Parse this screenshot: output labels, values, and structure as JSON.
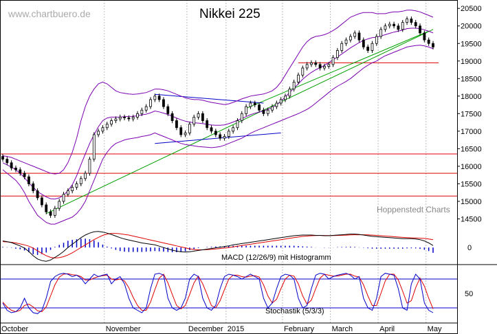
{
  "header": {
    "watermark": "www.chartbuero.de",
    "title": "Nikkei 225",
    "credit": "Hoppenstedt Charts"
  },
  "colors": {
    "candle": "#000000",
    "bollinger": "#7b00b0",
    "trend_green": "#00a000",
    "trend_blue": "#0000c8",
    "support_red": "#e00000",
    "macd_line": "#000000",
    "signal_line": "#e00000",
    "histogram": "#0000c8",
    "stoch_k": "#0000c8",
    "stoch_d": "#e00000"
  },
  "chart_data": [
    {
      "type": "candlestick",
      "name": "price-panel",
      "title": "Nikkei 225",
      "x_labels": [
        "October",
        "November",
        "December",
        "2015",
        "February",
        "March",
        "April",
        "May"
      ],
      "y_ticks": [
        14500,
        15000,
        15500,
        16000,
        16500,
        17000,
        17500,
        18000,
        18500,
        19000,
        19500,
        20000,
        20500
      ],
      "ylim": [
        14000,
        20700
      ],
      "closes": [
        16200,
        16100,
        15950,
        15900,
        15800,
        15700,
        15500,
        15300,
        15100,
        14900,
        14700,
        14600,
        14800,
        15000,
        15200,
        15300,
        15400,
        15500,
        15650,
        15800,
        16200,
        16900,
        17000,
        17100,
        17200,
        17300,
        17350,
        17400,
        17380,
        17350,
        17400,
        17500,
        17600,
        17700,
        17900,
        18000,
        17900,
        17700,
        17500,
        17300,
        17100,
        16900,
        16950,
        17200,
        17400,
        17500,
        17300,
        17100,
        17000,
        16900,
        16800,
        16850,
        17000,
        17100,
        17300,
        17500,
        17700,
        17800,
        17750,
        17600,
        17500,
        17600,
        17700,
        17800,
        17900,
        18000,
        18200,
        18400,
        18600,
        18800,
        18900,
        18950,
        18900,
        18800,
        18850,
        18900,
        19100,
        19300,
        19500,
        19600,
        19700,
        19800,
        19600,
        19400,
        19300,
        19500,
        19700,
        19900,
        20000,
        20050,
        20000,
        19900,
        20100,
        20200,
        20100,
        20000,
        19800,
        19600,
        19500,
        19400
      ],
      "bollinger_upper": [
        16300,
        16280,
        16250,
        16200,
        16150,
        16100,
        16050,
        16000,
        15950,
        15900,
        15850,
        15800,
        15780,
        15800,
        15900,
        16100,
        16400,
        16800,
        17300,
        17700,
        18000,
        18200,
        18350,
        18400,
        18350,
        18250,
        18150,
        18100,
        18080,
        18060,
        18050,
        18060,
        18080,
        18100,
        18150,
        18200,
        18200,
        18180,
        18150,
        18100,
        18050,
        18000,
        17950,
        17920,
        17900,
        17900,
        17880,
        17850,
        17820,
        17800,
        17780,
        17760,
        17780,
        17820,
        17870,
        17920,
        17960,
        18000,
        18020,
        18040,
        18060,
        18100,
        18150,
        18250,
        18400,
        18600,
        18800,
        19000,
        19200,
        19400,
        19550,
        19650,
        19700,
        19720,
        19750,
        19800,
        19870,
        19950,
        20050,
        20150,
        20250,
        20300,
        20350,
        20380,
        20380,
        20380,
        20350,
        20350,
        20350,
        20380,
        20400,
        20400,
        20420,
        20450,
        20450,
        20430,
        20400,
        20350,
        20300,
        20250
      ],
      "bollinger_lower": [
        15900,
        15800,
        15700,
        15600,
        15450,
        15250,
        15000,
        14800,
        14600,
        14500,
        14400,
        14350,
        14350,
        14400,
        14450,
        14500,
        14550,
        14650,
        14800,
        15000,
        15300,
        15600,
        15900,
        16200,
        16400,
        16550,
        16650,
        16700,
        16750,
        16780,
        16800,
        16820,
        16850,
        16870,
        16900,
        16950,
        16900,
        16850,
        16800,
        16750,
        16700,
        16650,
        16620,
        16600,
        16580,
        16560,
        16550,
        16540,
        16530,
        16540,
        16560,
        16600,
        16650,
        16700,
        16750,
        16800,
        16870,
        16940,
        17000,
        17050,
        17100,
        17150,
        17200,
        17250,
        17300,
        17350,
        17400,
        17450,
        17500,
        17560,
        17620,
        17700,
        17800,
        17900,
        18000,
        18100,
        18200,
        18280,
        18350,
        18420,
        18500,
        18600,
        18700,
        18800,
        18880,
        18950,
        19000,
        19080,
        19150,
        19200,
        19250,
        19300,
        19350,
        19400,
        19420,
        19440,
        19450,
        19430,
        19400,
        19350
      ]
    },
    {
      "type": "line",
      "name": "macd-panel",
      "label": "MACD (12/26/9) mit Histogramm",
      "y_ticks": [
        0
      ],
      "ylim": [
        -500,
        800
      ],
      "series": [
        {
          "name": "MACD",
          "values": [
            200,
            180,
            150,
            100,
            50,
            -20,
            -120,
            -250,
            -350,
            -400,
            -420,
            -380,
            -300,
            -220,
            -120,
            0,
            100,
            200,
            300,
            380,
            440,
            480,
            490,
            470,
            440,
            400,
            350,
            300,
            260,
            230,
            200,
            170,
            140,
            120,
            100,
            80,
            40,
            0,
            -40,
            -80,
            -110,
            -130,
            -140,
            -130,
            -110,
            -90,
            -70,
            -50,
            -30,
            -10,
            10,
            30,
            50,
            80,
            100,
            120,
            140,
            160,
            180,
            200,
            220,
            240,
            260,
            280,
            300,
            320,
            340,
            360,
            370,
            380,
            380,
            380,
            370,
            370,
            360,
            360,
            370,
            380,
            390,
            400,
            410,
            410,
            400,
            380,
            360,
            340,
            330,
            320,
            310,
            300,
            290,
            280,
            270,
            270,
            270,
            260,
            240,
            200,
            140,
            60
          ]
        },
        {
          "name": "Signal",
          "values": [
            180,
            170,
            160,
            140,
            110,
            80,
            40,
            -20,
            -100,
            -180,
            -250,
            -300,
            -320,
            -310,
            -280,
            -230,
            -160,
            -80,
            0,
            80,
            160,
            240,
            310,
            370,
            410,
            430,
            430,
            420,
            400,
            380,
            350,
            320,
            290,
            260,
            230,
            200,
            170,
            140,
            110,
            80,
            50,
            20,
            -10,
            -40,
            -60,
            -70,
            -70,
            -65,
            -55,
            -45,
            -30,
            -15,
            0,
            20,
            40,
            60,
            80,
            100,
            120,
            140,
            160,
            180,
            200,
            220,
            240,
            260,
            280,
            300,
            320,
            340,
            350,
            360,
            365,
            368,
            368,
            366,
            366,
            368,
            372,
            378,
            384,
            390,
            392,
            390,
            385,
            378,
            370,
            360,
            350,
            340,
            330,
            320,
            310,
            300,
            295,
            290,
            285,
            275,
            260,
            240
          ]
        }
      ]
    },
    {
      "type": "line",
      "name": "stochastic-panel",
      "label": "Stochastik (5/3/3)",
      "y_ticks": [
        50
      ],
      "ylim": [
        0,
        100
      ],
      "levels": [
        20,
        80
      ],
      "series": [
        {
          "name": "%K",
          "values": [
            30,
            15,
            10,
            12,
            20,
            40,
            20,
            10,
            8,
            15,
            40,
            75,
            85,
            90,
            92,
            90,
            85,
            88,
            82,
            70,
            80,
            90,
            85,
            88,
            90,
            70,
            80,
            85,
            70,
            40,
            20,
            15,
            10,
            20,
            60,
            90,
            92,
            88,
            40,
            20,
            15,
            20,
            40,
            80,
            90,
            85,
            40,
            20,
            15,
            25,
            60,
            85,
            90,
            88,
            85,
            80,
            85,
            90,
            85,
            80,
            40,
            20,
            30,
            60,
            85,
            90,
            88,
            80,
            40,
            20,
            25,
            60,
            88,
            92,
            90,
            80,
            85,
            88,
            90,
            92,
            88,
            80,
            85,
            40,
            20,
            15,
            40,
            85,
            92,
            90,
            88,
            60,
            20,
            15,
            70,
            90,
            80,
            30,
            15,
            10
          ]
        },
        {
          "name": "%D",
          "values": [
            32,
            22,
            15,
            12,
            15,
            25,
            28,
            22,
            14,
            12,
            22,
            45,
            68,
            84,
            90,
            91,
            89,
            88,
            85,
            78,
            78,
            82,
            85,
            87,
            88,
            80,
            78,
            80,
            76,
            62,
            42,
            25,
            15,
            15,
            32,
            58,
            82,
            90,
            72,
            48,
            25,
            18,
            25,
            48,
            72,
            86,
            70,
            48,
            25,
            20,
            35,
            58,
            80,
            88,
            88,
            85,
            84,
            86,
            87,
            84,
            68,
            45,
            30,
            38,
            60,
            80,
            88,
            86,
            70,
            45,
            28,
            36,
            60,
            82,
            90,
            88,
            86,
            86,
            88,
            90,
            90,
            86,
            84,
            68,
            45,
            25,
            25,
            50,
            76,
            90,
            90,
            78,
            55,
            30,
            35,
            62,
            82,
            65,
            40,
            18
          ]
        }
      ]
    }
  ]
}
